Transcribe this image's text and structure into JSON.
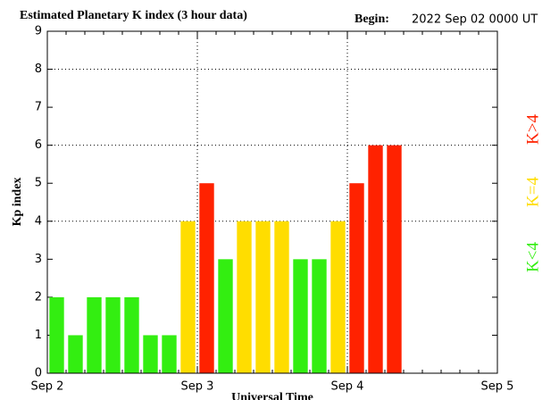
{
  "chart_data": {
    "type": "bar",
    "title": "Estimated Planetary K index (3 hour data)",
    "begin_label": "Begin:",
    "begin_value": "2022 Sep 02 0000 UT",
    "ylabel": "Kp index",
    "xlabel": "Universal Time",
    "xticks": [
      "Sep 2",
      "Sep 3",
      "Sep 4",
      "Sep 5"
    ],
    "values": [
      2,
      1,
      2,
      2,
      2,
      1,
      1,
      4,
      5,
      3,
      4,
      4,
      4,
      3,
      3,
      4,
      5,
      6,
      6,
      null,
      null,
      null,
      null,
      null
    ],
    "ylim": [
      0,
      9
    ],
    "yticks": [
      0,
      1,
      2,
      3,
      4,
      5,
      6,
      7,
      8,
      9
    ],
    "grid_yticks": [
      4,
      6,
      8
    ],
    "legend": [
      {
        "label": "K<4",
        "color": "#33ee11"
      },
      {
        "label": "K=4",
        "color": "#ffdd00"
      },
      {
        "label": "K>4",
        "color": "#ff2200"
      }
    ],
    "threshold": 4
  }
}
